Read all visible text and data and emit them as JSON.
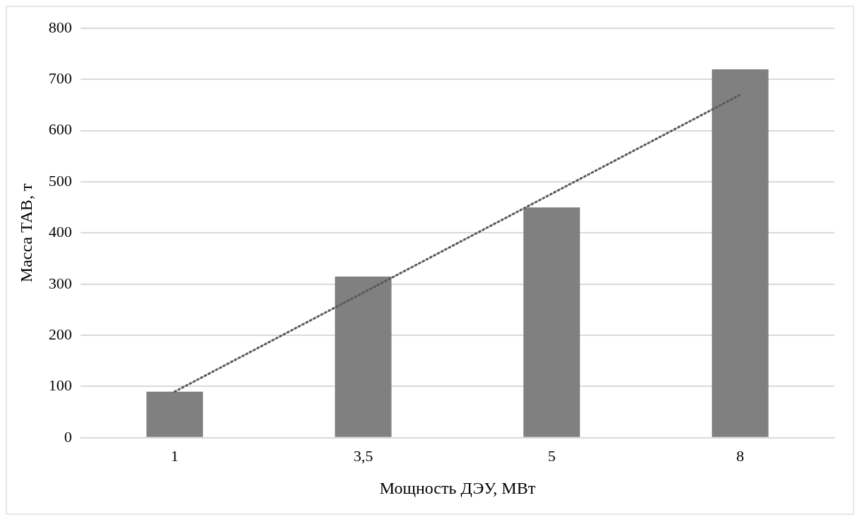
{
  "chart_data": {
    "type": "bar",
    "xlabel": "Мощность ДЭУ, МВт",
    "ylabel": "Масса ТАВ, т",
    "categories": [
      "1",
      "3,5",
      "5",
      "8"
    ],
    "series": [
      {
        "color": "#808080",
        "values": [
          90,
          315,
          450,
          720
        ]
      },
      {
        "type": "line",
        "color": "#5a5a5a",
        "x": [
          "1",
          "8"
        ],
        "values": [
          90,
          670
        ],
        "line_style": "dotted",
        "marker": "none"
      }
    ],
    "ylim": [
      0,
      800
    ],
    "yticks": [
      0,
      100,
      200,
      300,
      400,
      500,
      600,
      700,
      800
    ],
    "grid": "y",
    "legend": false
  }
}
